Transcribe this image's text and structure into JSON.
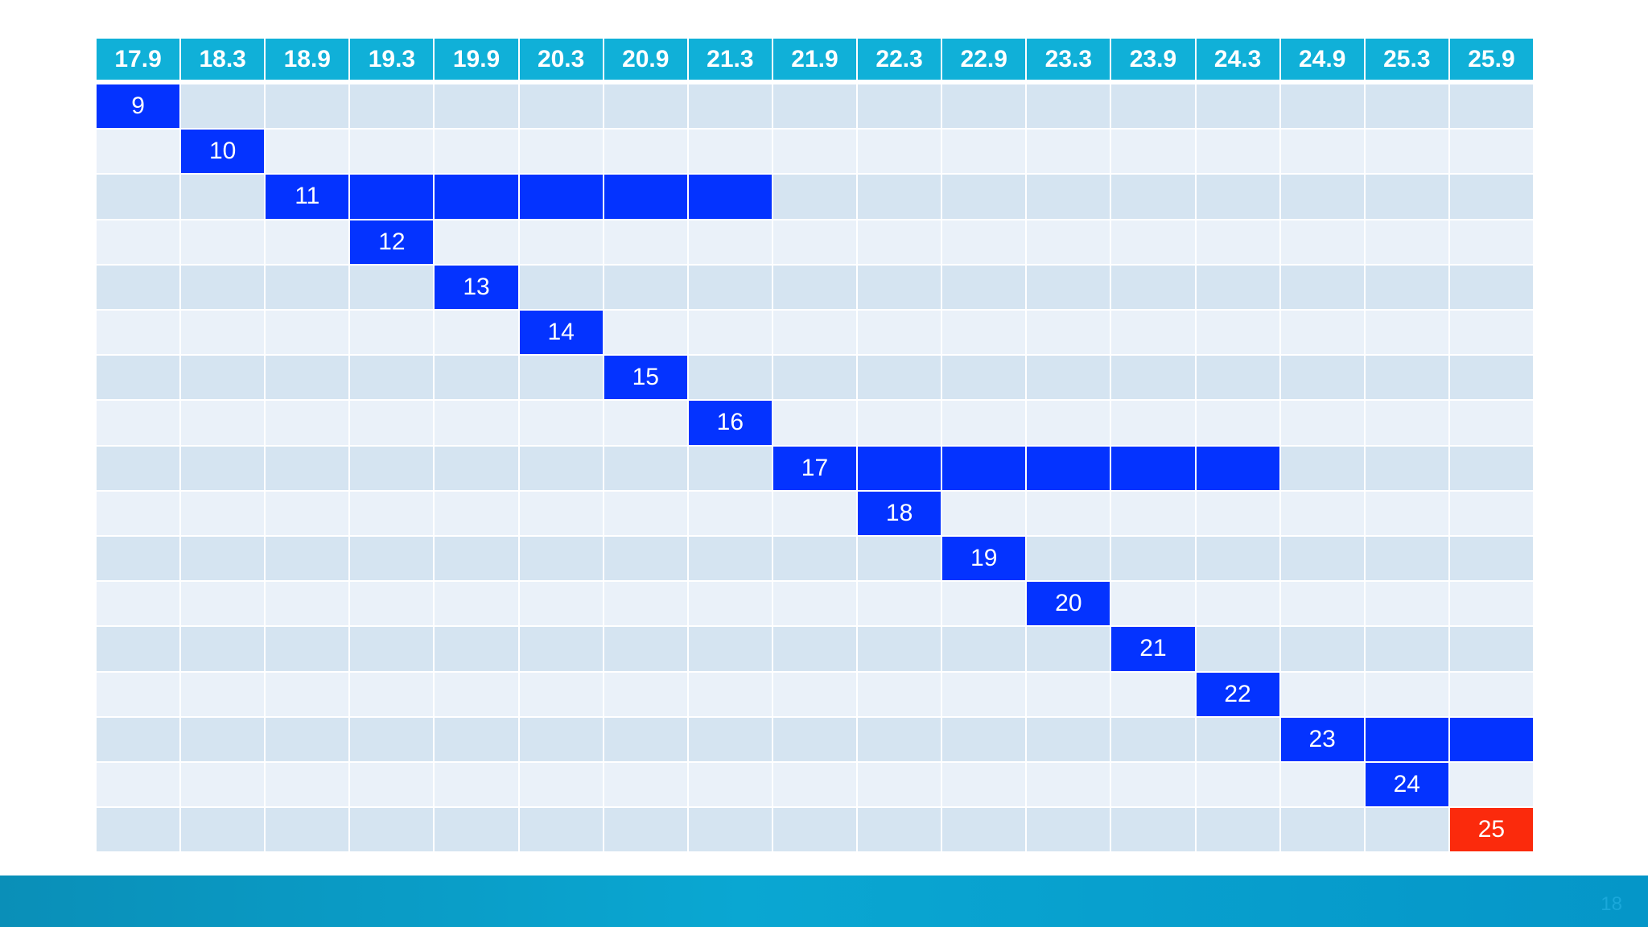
{
  "table": {
    "header": [
      "17.9",
      "18.3",
      "18.9",
      "19.3",
      "19.9",
      "20.3",
      "20.9",
      "21.3",
      "21.9",
      "22.3",
      "22.9",
      "23.3",
      "23.9",
      "24.3",
      "24.9",
      "25.3",
      "25.9"
    ],
    "highlight_color": "#0433ff",
    "rows": [
      {
        "label": "9"
      },
      {
        "label": "10"
      },
      {
        "label": "11",
        "through": "21.3"
      },
      {
        "label": "12"
      },
      {
        "label": "13"
      },
      {
        "label": "14"
      },
      {
        "label": "15"
      },
      {
        "label": "16"
      },
      {
        "label": "17",
        "through": "24.3"
      },
      {
        "label": "18"
      },
      {
        "label": "19"
      },
      {
        "label": "20"
      },
      {
        "label": "21"
      },
      {
        "label": "22"
      },
      {
        "label": "23",
        "through": "25.9"
      },
      {
        "label": "24"
      },
      {
        "label": "25",
        "color": "#fb2a0c"
      }
    ]
  },
  "page_number": "18"
}
